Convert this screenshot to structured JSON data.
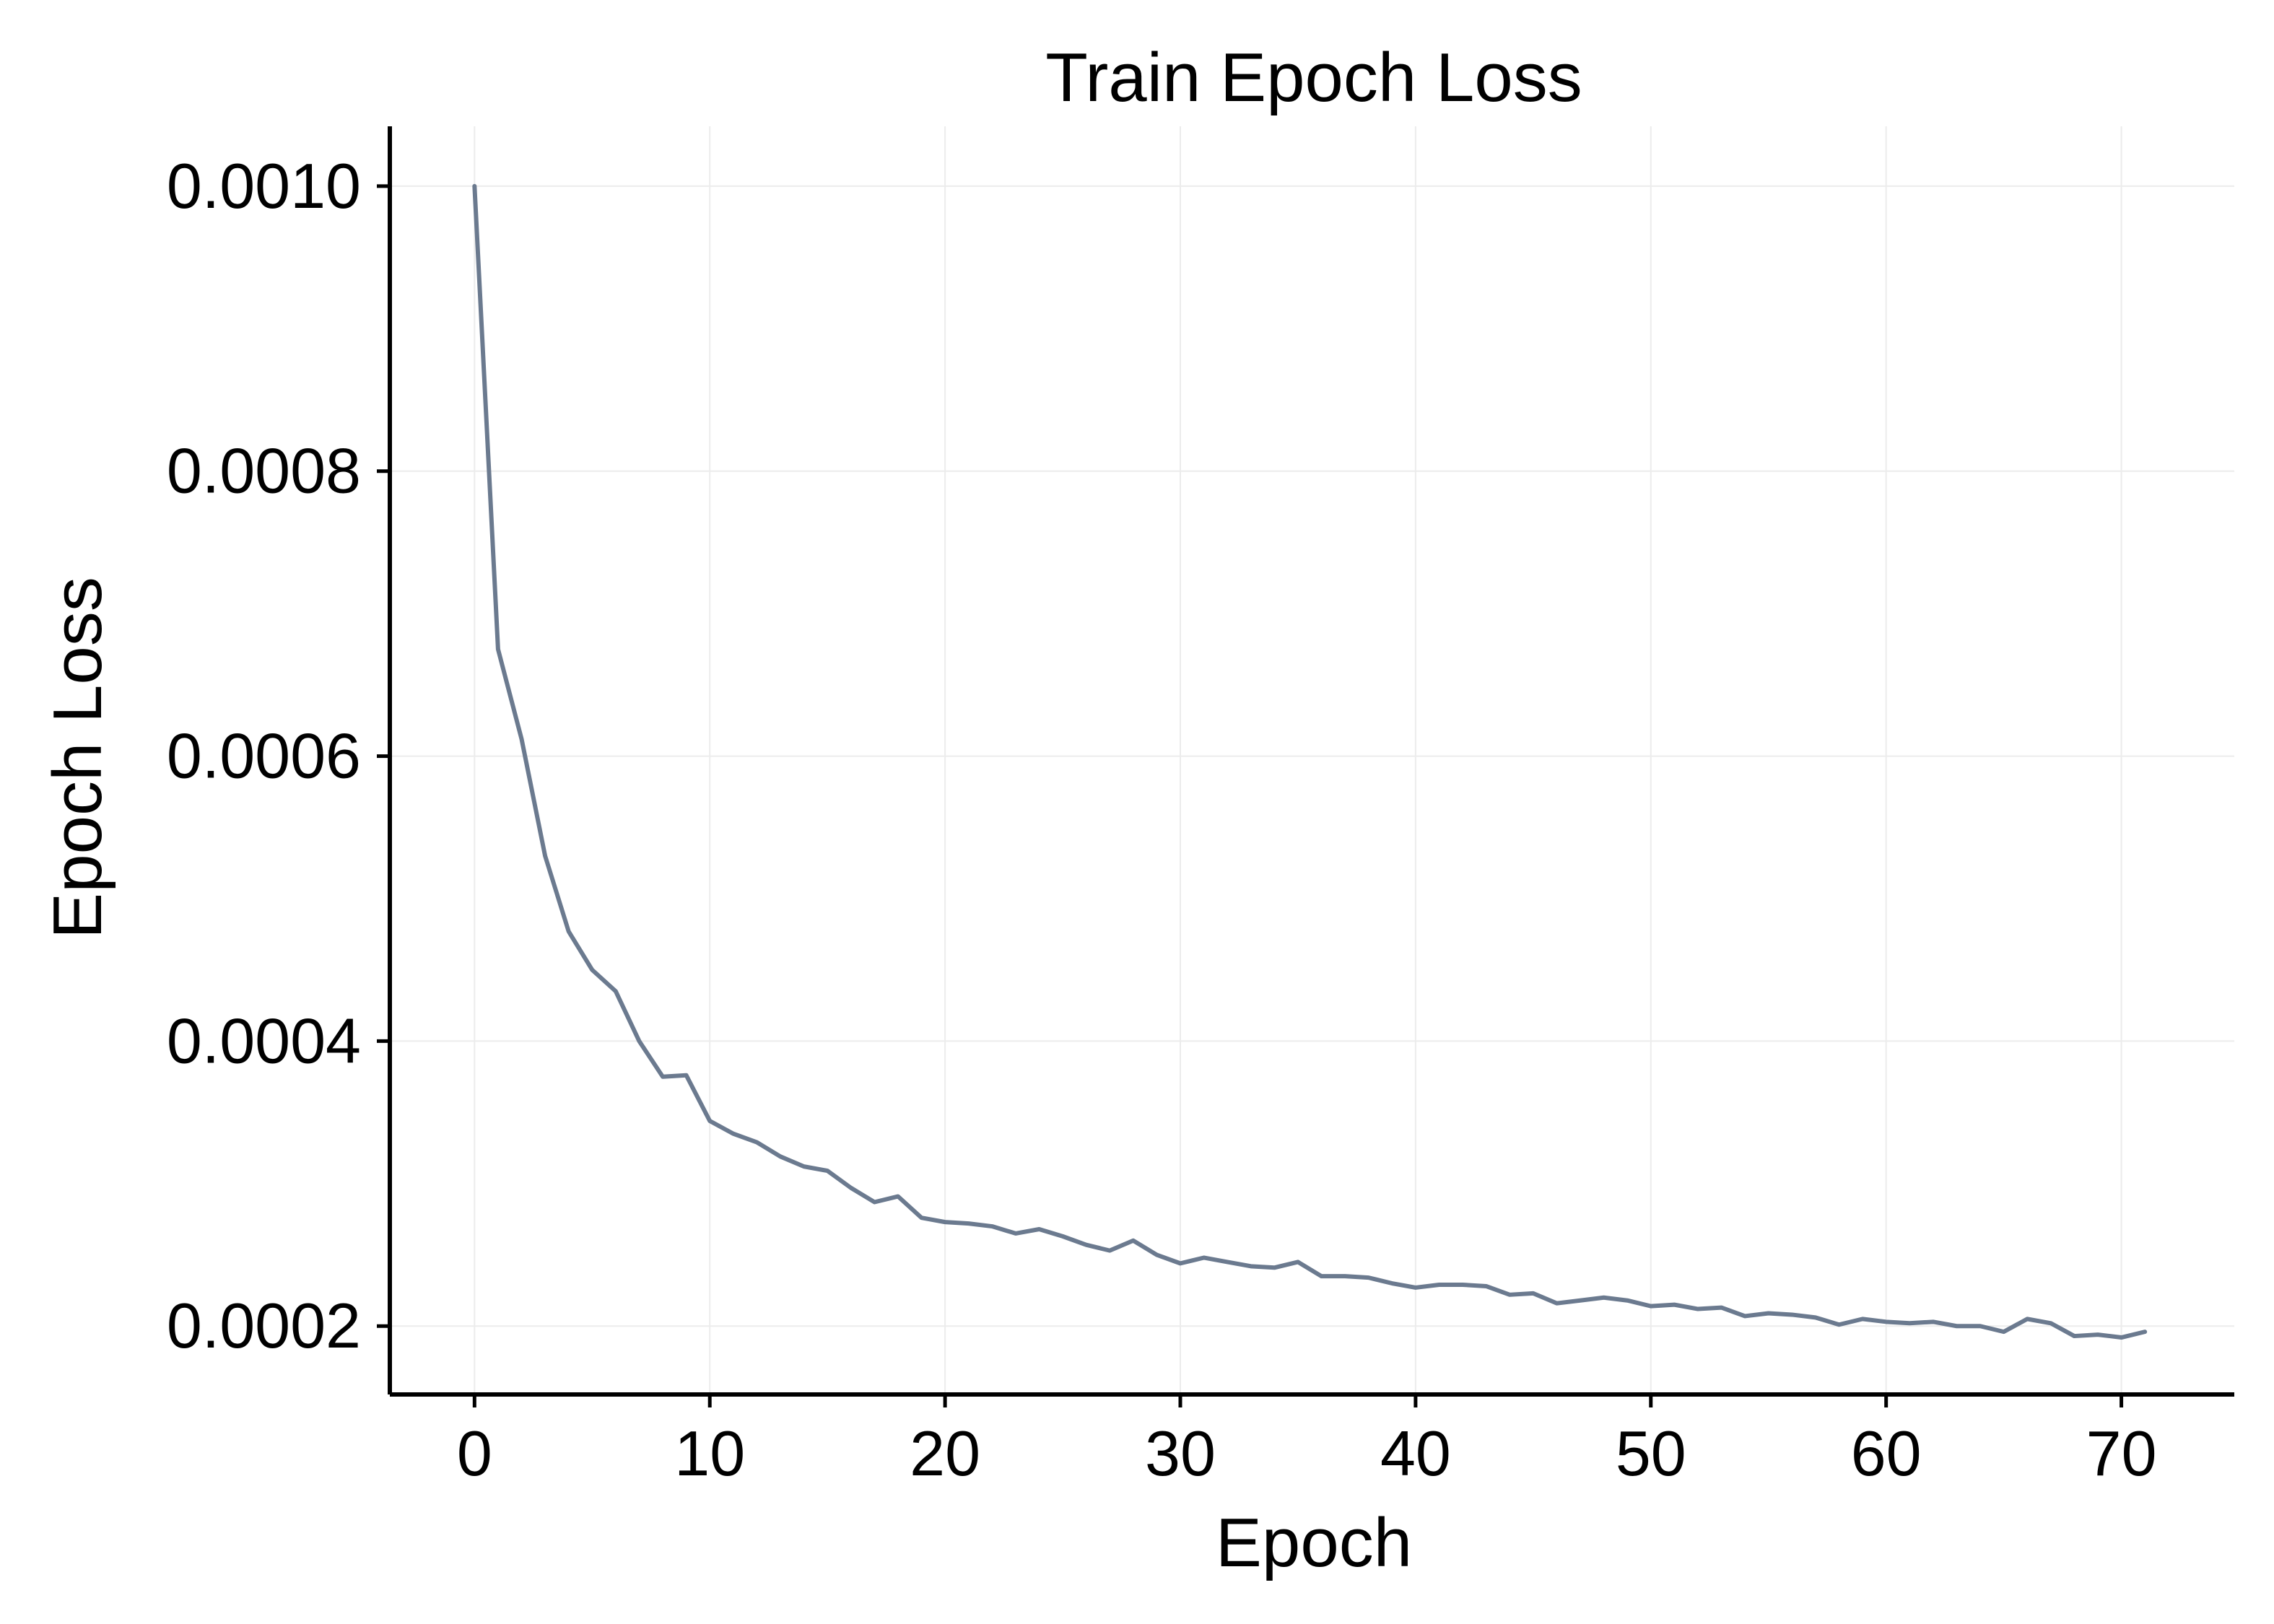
{
  "chart_data": {
    "type": "line",
    "title": "Train Epoch Loss",
    "xlabel": "Epoch",
    "ylabel": "Epoch Loss",
    "xlim": [
      -3.6,
      74.8
    ],
    "ylim": [
      0.000152,
      0.001042
    ],
    "xticks": [
      0,
      10,
      20,
      30,
      40,
      50,
      60,
      70
    ],
    "xtick_labels": [
      "0",
      "10",
      "20",
      "30",
      "40",
      "50",
      "60",
      "70"
    ],
    "yticks": [
      0.0002,
      0.0004,
      0.0006,
      0.0008,
      0.001
    ],
    "ytick_labels": [
      "0.0002",
      "0.0004",
      "0.0006",
      "0.0008",
      "0.0010"
    ],
    "grid": true,
    "series": [
      {
        "color": "#6b7a8f",
        "x": [
          0,
          1,
          2,
          3,
          4,
          5,
          6,
          7,
          8,
          9,
          10,
          11,
          12,
          13,
          14,
          15,
          16,
          17,
          18,
          19,
          20,
          21,
          22,
          23,
          24,
          25,
          26,
          27,
          28,
          29,
          30,
          31,
          32,
          33,
          34,
          35,
          36,
          37,
          38,
          39,
          40,
          41,
          42,
          43,
          44,
          45,
          46,
          47,
          48,
          49,
          50,
          51,
          52,
          53,
          54,
          55,
          56,
          57,
          58,
          59,
          60,
          61,
          62,
          63,
          64,
          65,
          66,
          67,
          68,
          69,
          70,
          71
        ],
        "values": [
          0.001,
          0.000675,
          0.000612,
          0.00053,
          0.000477,
          0.00045,
          0.000435,
          0.0004,
          0.000375,
          0.000376,
          0.000344,
          0.000335,
          0.000329,
          0.000319,
          0.000312,
          0.000309,
          0.000297,
          0.000287,
          0.000291,
          0.000276,
          0.000273,
          0.000272,
          0.00027,
          0.000265,
          0.000268,
          0.000263,
          0.000257,
          0.000253,
          0.00026,
          0.00025,
          0.000244,
          0.000248,
          0.000245,
          0.000242,
          0.000241,
          0.000245,
          0.000235,
          0.000235,
          0.000234,
          0.00023,
          0.000227,
          0.000229,
          0.000229,
          0.000228,
          0.000222,
          0.000223,
          0.000216,
          0.000218,
          0.00022,
          0.000218,
          0.000214,
          0.000215,
          0.000212,
          0.000213,
          0.000207,
          0.000209,
          0.000208,
          0.000206,
          0.000201,
          0.000205,
          0.000203,
          0.000202,
          0.000203,
          0.0002,
          0.0002,
          0.000196,
          0.000205,
          0.000202,
          0.000193,
          0.000194,
          0.000192,
          0.000196
        ]
      }
    ]
  }
}
